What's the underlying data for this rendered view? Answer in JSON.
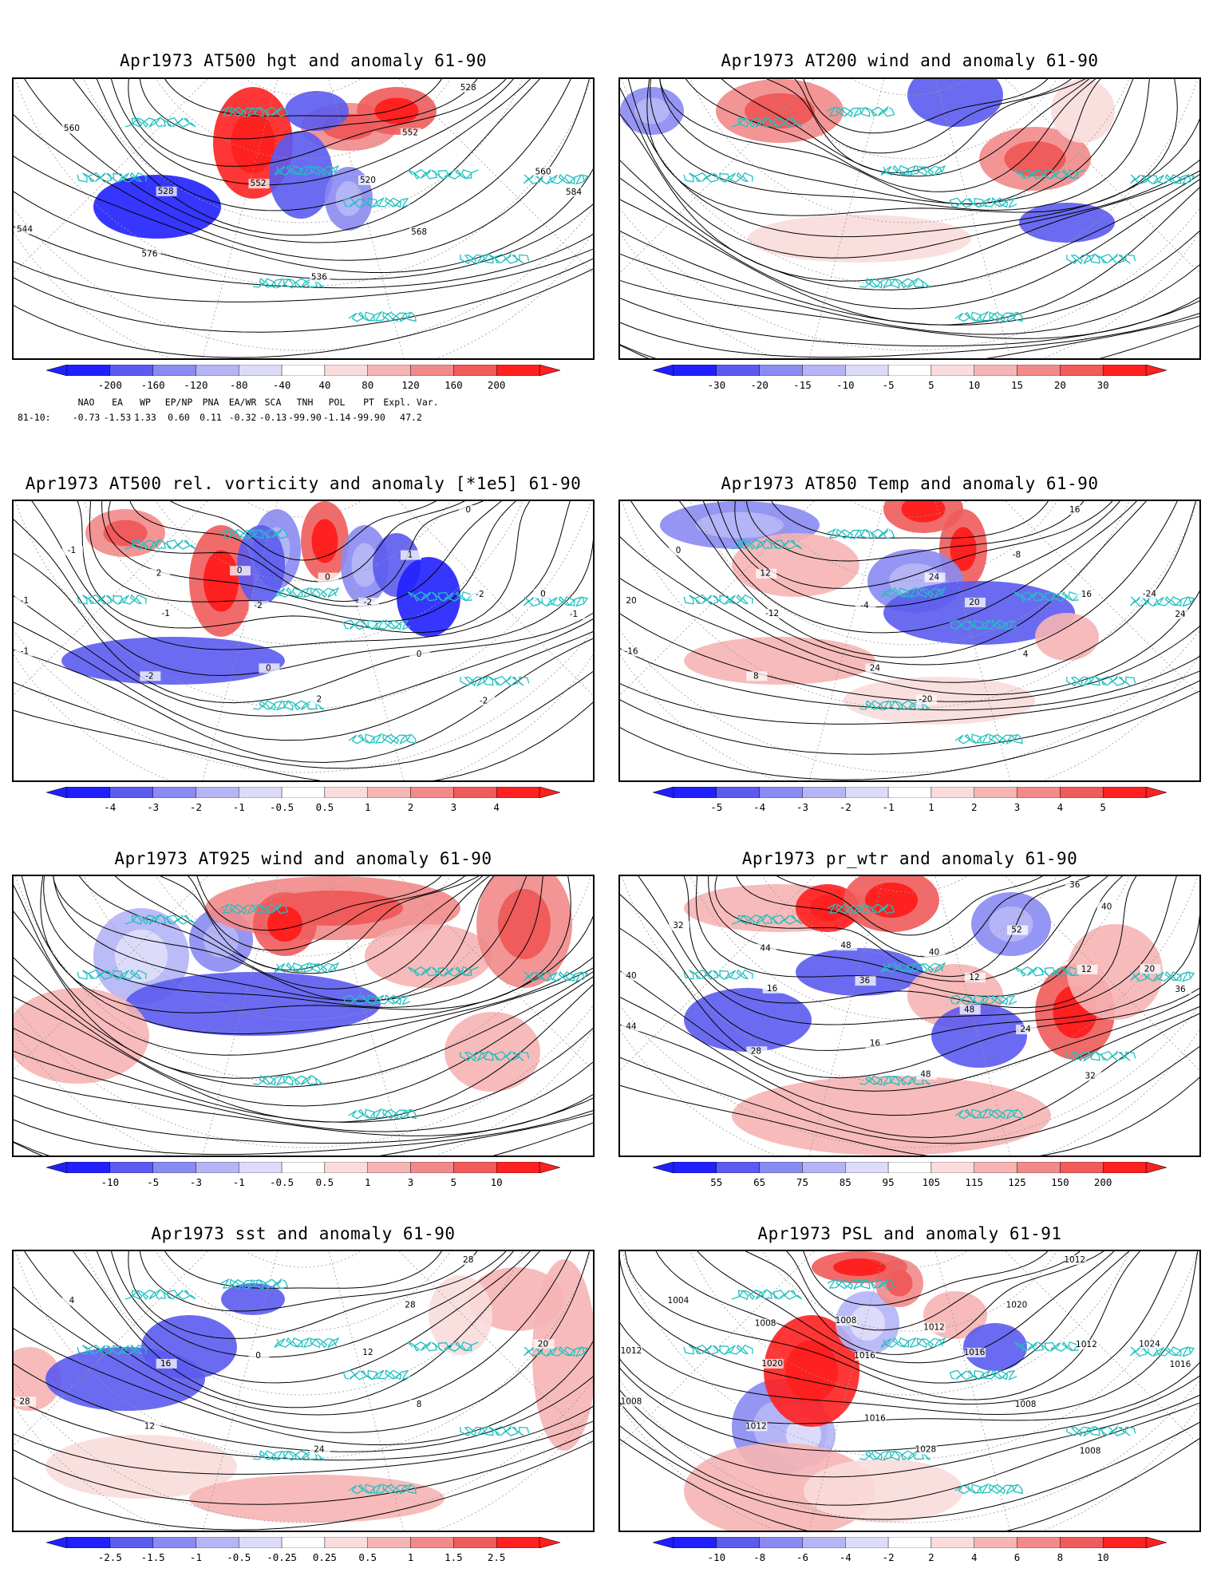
{
  "colors": {
    "neg": [
      "#2020ff",
      "#5b5bf0",
      "#8a8af2",
      "#b4b4f6",
      "#dcdcfa"
    ],
    "pos": [
      "#fadcdc",
      "#f6b4b4",
      "#f28a8a",
      "#f05b5b",
      "#ff2020"
    ],
    "coast": "#20c0c0",
    "contour": "#000000",
    "grid": "#999999"
  },
  "panels": [
    {
      "title": "Apr1973 AT500 hgt and anomaly 61-90",
      "cbar": [
        "-200",
        "-160",
        "-120",
        "-80",
        "-40",
        "40",
        "80",
        "120",
        "160",
        "200"
      ],
      "contour_labels": [
        "528",
        "520",
        "528",
        "560",
        "536",
        "544",
        "552",
        "552",
        "560",
        "568",
        "576",
        "584"
      ],
      "pattern": "hgt"
    },
    {
      "title": "Apr1973 AT200 wind and anomaly 61-90",
      "cbar": [
        "-30",
        "-20",
        "-15",
        "-10",
        "-5",
        "5",
        "10",
        "15",
        "20",
        "30"
      ],
      "contour_labels": [],
      "pattern": "wind200"
    },
    {
      "title": "Apr1973 AT500 rel. vorticity and anomaly [*1e5] 61-90",
      "cbar": [
        "-4",
        "-3",
        "-2",
        "-1",
        "-0.5",
        "0.5",
        "1",
        "2",
        "3",
        "4"
      ],
      "contour_labels": [
        "0",
        "-2",
        "-1",
        "0",
        "2",
        "-1",
        "1",
        "-2",
        "-1",
        "0",
        "-2",
        "-1",
        "0",
        "2",
        "-2",
        "0",
        "-1",
        "-2",
        "0"
      ],
      "pattern": "vort"
    },
    {
      "title": "Apr1973 AT850 Temp and anomaly 61-90",
      "cbar": [
        "-5",
        "-4",
        "-3",
        "-2",
        "-1",
        "1",
        "2",
        "3",
        "4",
        "5"
      ],
      "contour_labels": [
        "16",
        "20",
        "-12",
        "-24",
        "-20",
        "-16",
        "-8",
        "-4",
        "0",
        "4",
        "8",
        "24",
        "24",
        "12",
        "16",
        "24",
        "20"
      ],
      "pattern": "t850"
    },
    {
      "title": "Apr1973 AT925 wind and anomaly 61-90",
      "cbar": [
        "-10",
        "-5",
        "-3",
        "-1",
        "-0.5",
        "0.5",
        "1",
        "3",
        "5",
        "10"
      ],
      "contour_labels": [],
      "pattern": "wind925"
    },
    {
      "title": "Apr1973 pr_wtr and anomaly 61-90",
      "cbar": [
        "55",
        "65",
        "75",
        "85",
        "95",
        "105",
        "115",
        "125",
        "150",
        "200"
      ],
      "contour_labels": [
        "36",
        "12",
        "16",
        "20",
        "48",
        "44",
        "52",
        "36",
        "32",
        "24",
        "28",
        "36",
        "40",
        "44",
        "12",
        "16",
        "40",
        "32",
        "48",
        "40",
        "48"
      ],
      "pattern": "pw"
    },
    {
      "title": "Apr1973 sst and anomaly 61-90",
      "cbar": [
        "-2.5",
        "-1.5",
        "-1",
        "-0.5",
        "-0.25",
        "0.25",
        "0.5",
        "1",
        "1.5",
        "2.5"
      ],
      "contour_labels": [
        "28",
        "12",
        "16",
        "20",
        "24",
        "28",
        "28",
        "0",
        "4",
        "8",
        "12"
      ],
      "pattern": "sst"
    },
    {
      "title": "Apr1973 PSL and anomaly 61-91",
      "cbar": [
        "-10",
        "-8",
        "-6",
        "-4",
        "-2",
        "2",
        "4",
        "6",
        "8",
        "10"
      ],
      "contour_labels": [
        "1012",
        "1016",
        "1020",
        "1024",
        "1028",
        "1008",
        "1020",
        "1016",
        "1004",
        "1008",
        "1012",
        "1016",
        "1012",
        "1008",
        "1012",
        "1016",
        "1012",
        "1008",
        "1008"
      ],
      "pattern": "psl"
    }
  ],
  "teleconnections": {
    "headers": [
      "NAO",
      "EA",
      "WP",
      "EP/NP",
      "PNA",
      "EA/WR",
      "SCA",
      "TNH",
      "POL",
      "PT",
      "Expl. Var."
    ],
    "prefix": "81-10:",
    "values": [
      "-0.73",
      "-1.53",
      "1.33",
      "0.60",
      "0.11",
      "-0.32",
      "-0.13",
      "-99.90",
      "-1.14",
      "-99.90",
      "47.2"
    ]
  }
}
